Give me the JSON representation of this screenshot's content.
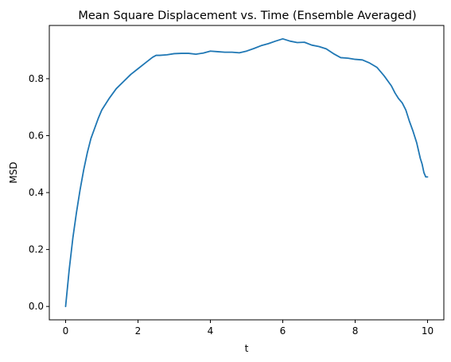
{
  "chart_data": {
    "type": "line",
    "title": "Mean Square Displacement vs. Time (Ensemble Averaged)",
    "xlabel": "t",
    "ylabel": "MSD",
    "xlim": [
      -0.45,
      10.45
    ],
    "ylim": [
      -0.047,
      0.987
    ],
    "xticks": [
      0,
      2,
      4,
      6,
      8,
      10
    ],
    "xtick_labels": [
      "0",
      "2",
      "4",
      "6",
      "8",
      "10"
    ],
    "yticks": [
      0.0,
      0.2,
      0.4,
      0.6,
      0.8
    ],
    "ytick_labels": [
      "0.0",
      "0.2",
      "0.4",
      "0.6",
      "0.8"
    ],
    "grid": false,
    "legend": "none",
    "series": [
      {
        "color": "#1f77b4",
        "x": [
          0,
          0.1,
          0.2,
          0.3,
          0.4,
          0.5,
          0.6,
          0.7,
          0.8,
          0.9,
          1.0,
          1.2,
          1.4,
          1.6,
          1.8,
          2.0,
          2.2,
          2.4,
          2.5,
          2.6,
          2.8,
          3.0,
          3.2,
          3.4,
          3.6,
          3.8,
          4.0,
          4.2,
          4.4,
          4.6,
          4.8,
          5.0,
          5.2,
          5.4,
          5.6,
          5.8,
          6.0,
          6.2,
          6.4,
          6.6,
          6.8,
          7.0,
          7.2,
          7.4,
          7.6,
          7.8,
          8.0,
          8.2,
          8.4,
          8.6,
          8.8,
          9.0,
          9.1,
          9.2,
          9.3,
          9.4,
          9.5,
          9.6,
          9.7,
          9.8,
          9.85,
          9.9,
          9.95,
          10.0
        ],
        "y": [
          0.0,
          0.13,
          0.24,
          0.33,
          0.41,
          0.48,
          0.54,
          0.59,
          0.625,
          0.66,
          0.69,
          0.73,
          0.765,
          0.79,
          0.815,
          0.835,
          0.855,
          0.875,
          0.882,
          0.882,
          0.884,
          0.888,
          0.889,
          0.889,
          0.886,
          0.89,
          0.897,
          0.895,
          0.893,
          0.893,
          0.891,
          0.897,
          0.906,
          0.916,
          0.923,
          0.932,
          0.94,
          0.932,
          0.927,
          0.928,
          0.918,
          0.913,
          0.905,
          0.888,
          0.874,
          0.872,
          0.868,
          0.866,
          0.855,
          0.84,
          0.81,
          0.775,
          0.75,
          0.73,
          0.715,
          0.69,
          0.65,
          0.615,
          0.575,
          0.52,
          0.5,
          0.47,
          0.455,
          0.455
        ]
      }
    ]
  }
}
